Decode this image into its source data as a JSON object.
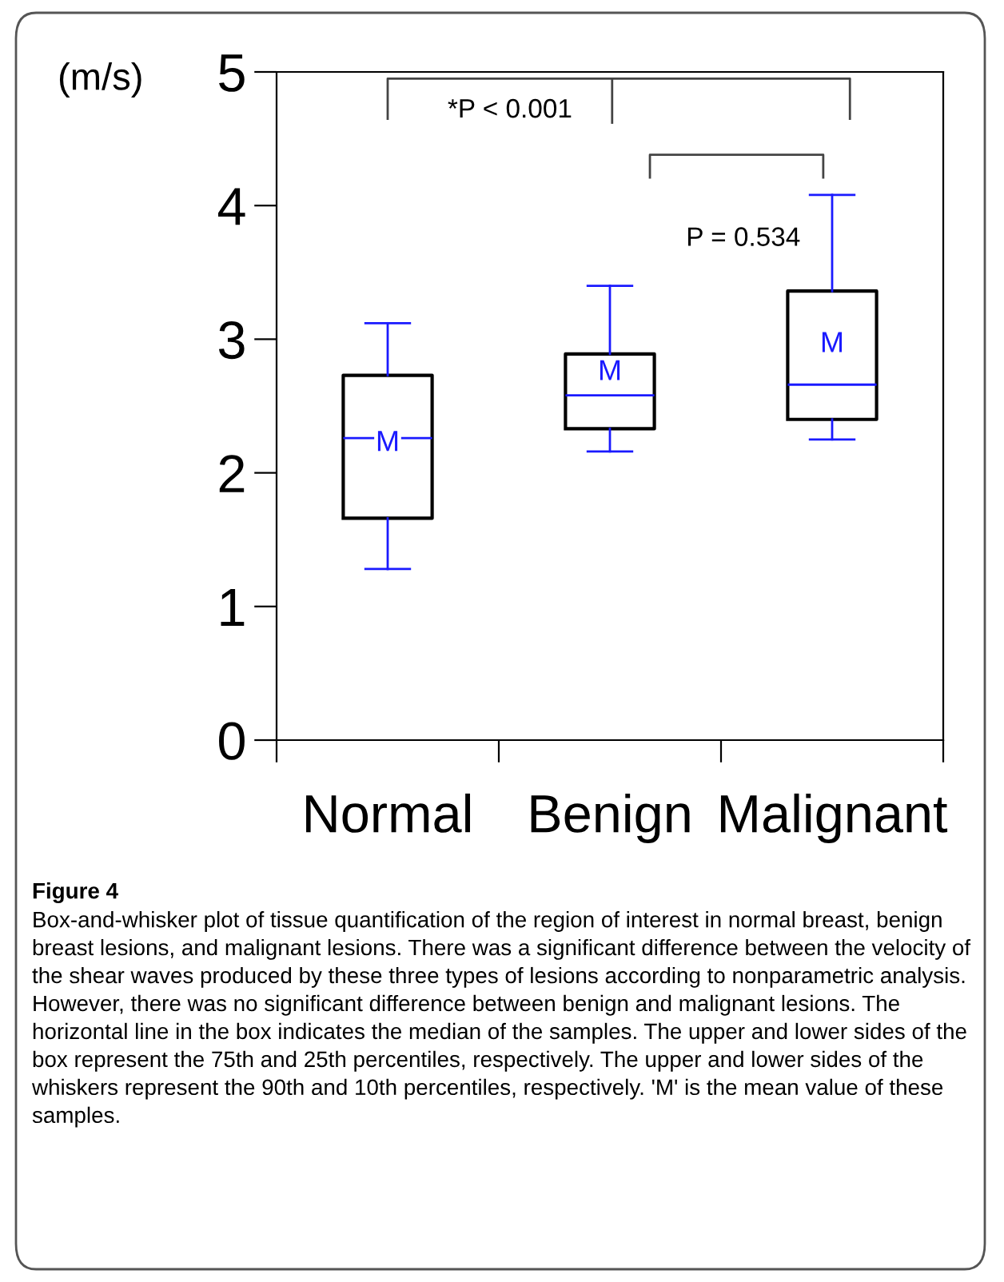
{
  "chart_data": {
    "type": "box",
    "ylabel": "(m/s)",
    "categories": [
      "Normal",
      "Benign",
      "Malignant"
    ],
    "boxes": [
      {
        "low": 1.28,
        "q1": 1.66,
        "median": 2.26,
        "q3": 2.73,
        "high": 3.12,
        "mean": 2.22
      },
      {
        "low": 2.16,
        "q1": 2.33,
        "median": 2.58,
        "q3": 2.89,
        "high": 3.4,
        "mean": 2.75
      },
      {
        "low": 2.25,
        "q1": 2.4,
        "median": 2.66,
        "q3": 3.36,
        "high": 4.08,
        "mean": 2.96
      }
    ],
    "ylim": [
      0,
      5
    ],
    "yticks": [
      0,
      1,
      2,
      3,
      4,
      5
    ],
    "grid": false,
    "annotations": [
      "*P < 0.001",
      "P = 0.534",
      "Figure 4",
      "Box-and-whisker plot of tissue quantification of the region of interest in normal breast, benign breast lesions, and malignant lesions. There was a significant difference between the velocity of the shear waves produced by these three types of lesions according to nonparametric analysis. However, there was no significant difference between benign and malignant lesions. The horizontal line in the box indicates the median of the samples. The upper and lower sides of the box represent the 75th and 25th percentiles, respectively. The upper and lower sides of the whiskers represent the 90th and 10th percentiles, respectively. 'M' is the mean value of these samples.",
      "M",
      "M",
      "M"
    ]
  }
}
